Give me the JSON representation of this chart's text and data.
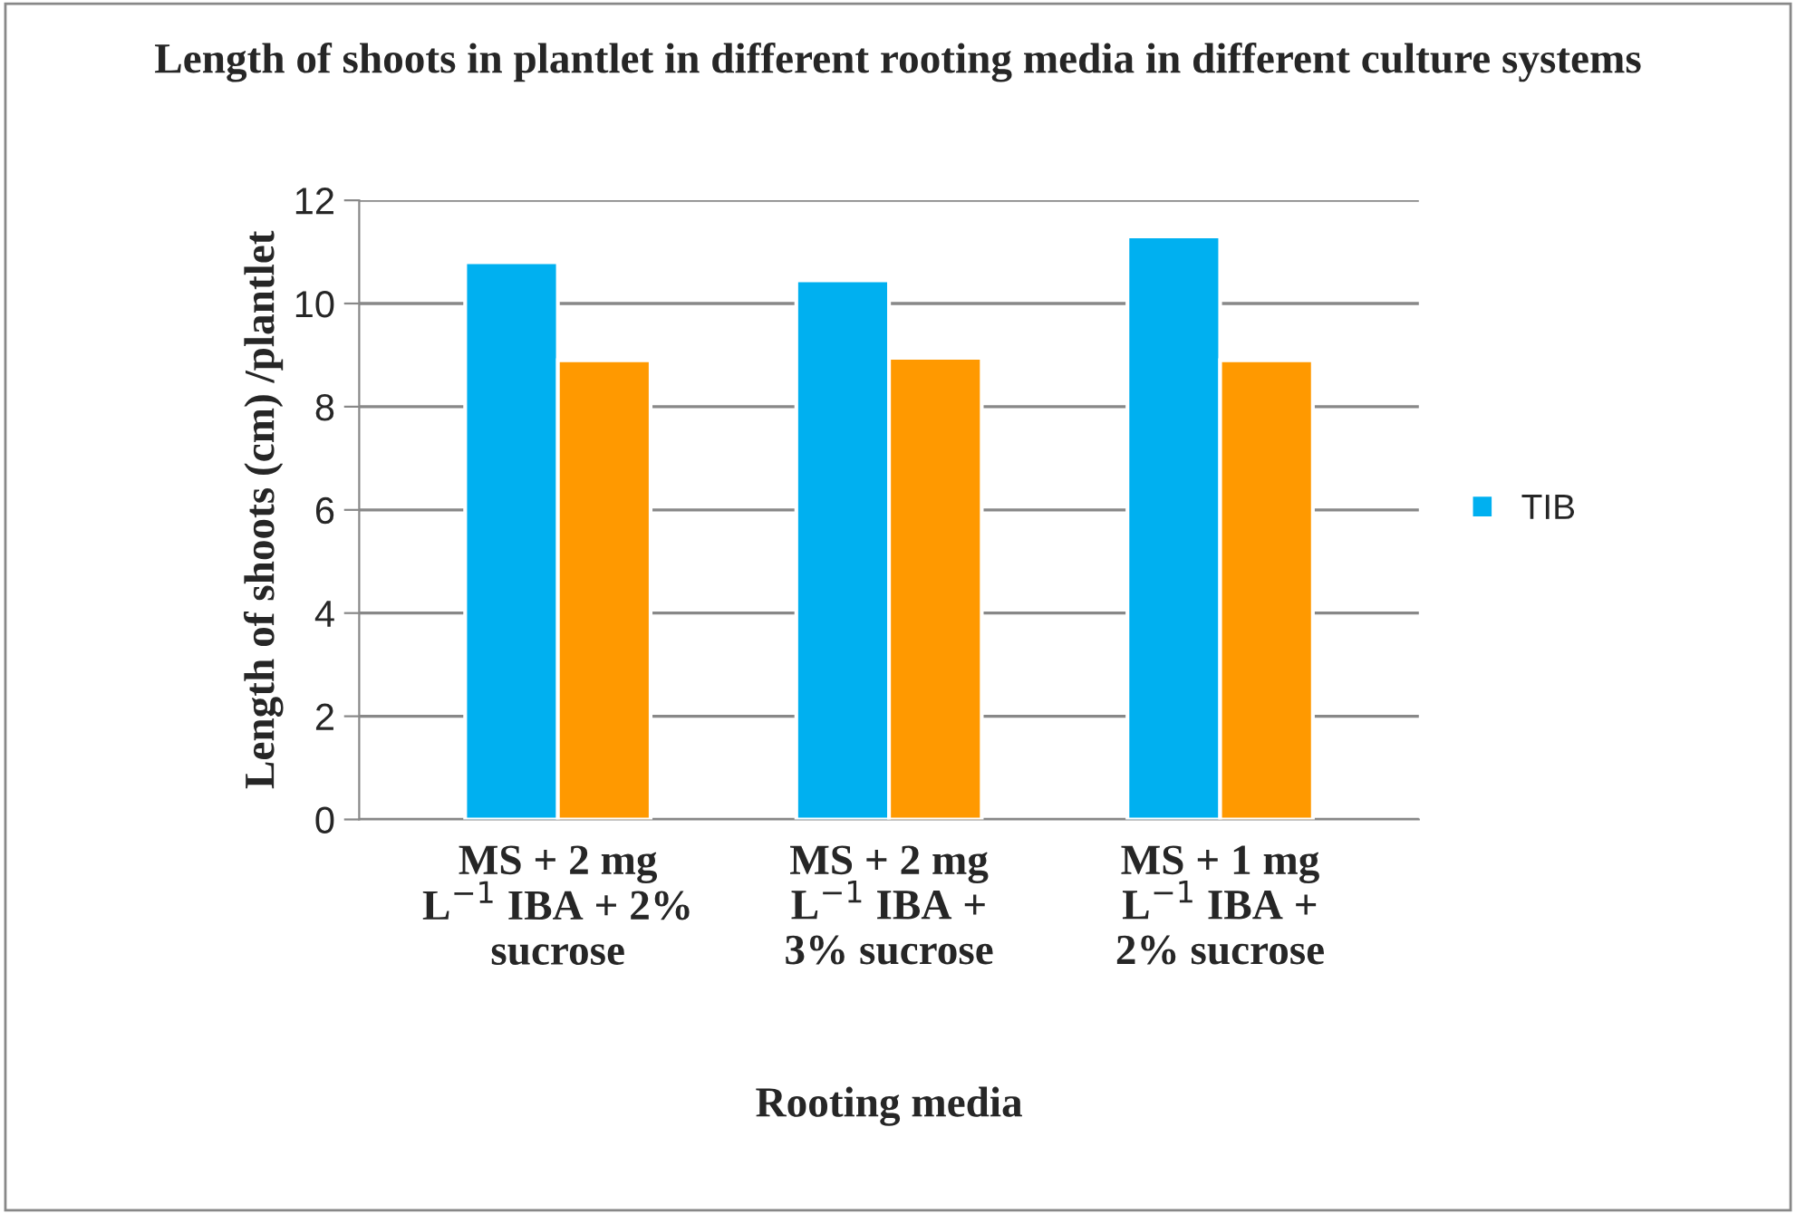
{
  "chart_data": {
    "type": "bar",
    "title": "Length of shoots in plantlet in different rooting media in different culture systems",
    "xlabel": "Rooting media",
    "ylabel": "Length of shoots (cm) /plantlet",
    "categories": [
      "MS + 2 mg\nL$^{−1}$ IBA + 2%\nsucrose",
      "MS + 2 mg\nL$^{−1}$ IBA +\n3% sucrose",
      "MS + 1 mg\nL$^{−1}$ IBA +\n2% sucrose"
    ],
    "series": [
      {
        "name": "TIB",
        "color": "#00b0f0",
        "values": [
          10.8,
          10.45,
          11.3
        ]
      },
      {
        "color": "#ff9900",
        "values": [
          8.9,
          8.95,
          8.9
        ]
      }
    ],
    "ylim": [
      0,
      12
    ],
    "yticks": [
      0,
      2,
      4,
      6,
      8,
      10,
      12
    ],
    "grid": "y",
    "legend": "right"
  }
}
